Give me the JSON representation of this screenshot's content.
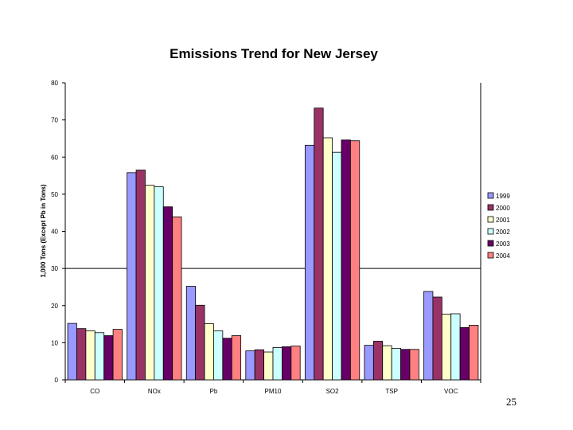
{
  "page_number": "25",
  "colors": {
    "1999": "#9999ff",
    "2000": "#993366",
    "2001": "#ffffcc",
    "2002": "#ccffff",
    "2003": "#660066",
    "2004": "#ff8080"
  },
  "chart_data": {
    "type": "bar",
    "title": "Emissions Trend for New Jersey",
    "xlabel": "",
    "ylabel": "1,000 Tons (Except Pb in Tons)",
    "ylim": [
      0,
      80
    ],
    "yticks": [
      0,
      10,
      20,
      30,
      40,
      50,
      60,
      70,
      80
    ],
    "grid": false,
    "reference_line": 30,
    "legend_position": "right",
    "categories": [
      "CO",
      "NOx",
      "Pb",
      "PM10",
      "SO2",
      "TSP",
      "VOC"
    ],
    "series": [
      {
        "name": "1999",
        "values": [
          15.2,
          55.8,
          25.2,
          7.8,
          63.2,
          9.3,
          23.8
        ]
      },
      {
        "name": "2000",
        "values": [
          13.8,
          56.5,
          20.1,
          8.1,
          73.2,
          10.4,
          22.3
        ]
      },
      {
        "name": "2001",
        "values": [
          13.2,
          52.4,
          15.1,
          7.5,
          65.2,
          9.2,
          17.7
        ]
      },
      {
        "name": "2002",
        "values": [
          12.7,
          52.0,
          13.2,
          8.7,
          61.3,
          8.5,
          17.8
        ]
      },
      {
        "name": "2003",
        "values": [
          11.9,
          46.6,
          11.2,
          8.9,
          64.6,
          8.2,
          14.1
        ]
      },
      {
        "name": "2004",
        "values": [
          13.6,
          43.9,
          11.9,
          9.1,
          64.4,
          8.2,
          14.7
        ]
      }
    ]
  }
}
